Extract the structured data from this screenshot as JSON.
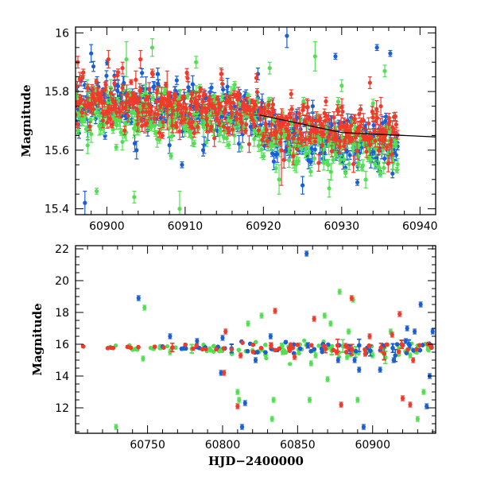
{
  "colors": {
    "blue": "#1a5fd6",
    "green": "#52e052",
    "red": "#f03a2a",
    "black": "#000000"
  },
  "chart_data": [
    {
      "type": "scatter",
      "panel": "top",
      "xlabel": "",
      "ylabel": "Magnitude",
      "xlim": [
        60896,
        60942
      ],
      "ylim": [
        16.02,
        15.38
      ],
      "y_inverted": true,
      "xticks": [
        60900,
        60910,
        60920,
        60930,
        60940
      ],
      "yticks": [
        15.4,
        15.6,
        15.8,
        16
      ],
      "ytick_labels": [
        "15.4",
        "15.6",
        "15.8",
        "16"
      ],
      "trend_line": {
        "points": [
          [
            60919.5,
            15.72
          ],
          [
            60930,
            15.66
          ],
          [
            60942,
            15.645
          ]
        ],
        "color": "black"
      },
      "series": [
        {
          "color": "blue",
          "trend": [
            [
              60896,
              15.78
            ],
            [
              60919,
              15.73
            ],
            [
              60920.5,
              15.66
            ],
            [
              60937,
              15.62
            ]
          ],
          "scatter": 0.045,
          "dense": true,
          "outliers": [
            [
              60897.2,
              15.42,
              0.04
            ],
            [
              60898.0,
              15.93,
              0.03
            ],
            [
              60903.8,
              15.6,
              0.03
            ],
            [
              60905.0,
              15.81,
              0.04
            ],
            [
              60906.5,
              15.86,
              0.02
            ],
            [
              60909.6,
              15.55,
              0.01
            ],
            [
              60912.3,
              15.6,
              0.02
            ],
            [
              60917.0,
              15.74,
              0.02
            ],
            [
              60919.3,
              15.86,
              0.02
            ],
            [
              60923.0,
              15.99,
              0.04
            ],
            [
              60925.0,
              15.48,
              0.03
            ],
            [
              60926.3,
              15.75,
              0.02
            ],
            [
              60927.5,
              15.66,
              0.03
            ],
            [
              60929.2,
              15.92,
              0.01
            ],
            [
              60932.0,
              15.49,
              0.01
            ],
            [
              60934.5,
              15.95,
              0.01
            ],
            [
              60936.2,
              15.93,
              0.01
            ]
          ]
        },
        {
          "color": "green",
          "trend": [
            [
              60896,
              15.74
            ],
            [
              60919,
              15.72
            ],
            [
              60920.5,
              15.66
            ],
            [
              60937,
              15.62
            ]
          ],
          "scatter": 0.05,
          "dense": true,
          "outliers": [
            [
              60897.5,
              15.82,
              0.02
            ],
            [
              60898.7,
              15.46,
              0.01
            ],
            [
              60901.2,
              15.61,
              0.01
            ],
            [
              60902.5,
              15.91,
              0.06
            ],
            [
              60903.5,
              15.44,
              0.02
            ],
            [
              60905.8,
              15.95,
              0.03
            ],
            [
              60908.2,
              15.58,
              0.01
            ],
            [
              60909.3,
              15.4,
              0.06
            ],
            [
              60911.4,
              15.9,
              0.02
            ],
            [
              60913.6,
              15.67,
              0.02
            ],
            [
              60916.3,
              15.65,
              0.03
            ],
            [
              60918.2,
              15.75,
              0.04
            ],
            [
              60920.8,
              15.88,
              0.02
            ],
            [
              60922.0,
              15.5,
              0.05
            ],
            [
              60924.0,
              15.56,
              0.03
            ],
            [
              60926.6,
              15.92,
              0.05
            ],
            [
              60928.4,
              15.47,
              0.03
            ],
            [
              60930.0,
              15.82,
              0.02
            ],
            [
              60932.5,
              15.66,
              0.02
            ],
            [
              60935.5,
              15.87,
              0.02
            ]
          ]
        },
        {
          "color": "red",
          "trend": [
            [
              60896,
              15.78
            ],
            [
              60919,
              15.74
            ],
            [
              60920.5,
              15.7
            ],
            [
              60937,
              15.66
            ]
          ],
          "scatter": 0.04,
          "dense": true,
          "outliers": [
            [
              60896.3,
              15.9,
              0.02
            ],
            [
              60900.2,
              15.91,
              0.03
            ],
            [
              60902.0,
              15.88,
              0.02
            ],
            [
              60903.7,
              15.84,
              0.03
            ],
            [
              60904.3,
              15.91,
              0.03
            ],
            [
              60907.1,
              15.65,
              0.01
            ],
            [
              60907.7,
              15.77,
              0.1
            ],
            [
              60910.8,
              15.68,
              0.01
            ],
            [
              60914.6,
              15.86,
              0.02
            ],
            [
              60920.1,
              15.74,
              0.01
            ],
            [
              60922.3,
              15.6,
              0.12
            ],
            [
              60923.8,
              15.58,
              0.03
            ],
            [
              60925.3,
              15.7,
              0.02
            ],
            [
              60929.7,
              15.61,
              0.02
            ],
            [
              60933.6,
              15.83,
              0.02
            ],
            [
              60935.0,
              15.75,
              0.03
            ],
            [
              60936.0,
              15.69,
              0.02
            ]
          ]
        }
      ]
    },
    {
      "type": "scatter",
      "panel": "bottom",
      "xlabel": "HJD−2400000",
      "ylabel": "Magnitude",
      "xlim": [
        60702,
        60942
      ],
      "ylim": [
        22.2,
        10.4
      ],
      "y_inverted": true,
      "xticks": [
        60750,
        60800,
        60850,
        60900
      ],
      "yticks": [
        12,
        14,
        16,
        18,
        20,
        22
      ],
      "ytick_labels": [
        "12",
        "14",
        "16",
        "18",
        "20",
        "22"
      ],
      "series": [
        {
          "color": "green",
          "baseline": 15.75,
          "x_range": [
            60725,
            60938
          ],
          "scatter": 0.25,
          "outliers": [
            [
              60729,
              10.8
            ],
            [
              60747,
              15.1
            ],
            [
              60748,
              18.3
            ],
            [
              60765,
              15.5
            ],
            [
              60806,
              15.5
            ],
            [
              60810,
              13.0
            ],
            [
              60811,
              12.5
            ],
            [
              60817,
              17.3
            ],
            [
              60826,
              17.8
            ],
            [
              60833,
              11.3
            ],
            [
              60834,
              12.5
            ],
            [
              60840,
              15.5
            ],
            [
              60858,
              12.5
            ],
            [
              60859,
              14.8
            ],
            [
              60862,
              15.3
            ],
            [
              60868,
              17.8
            ],
            [
              60870,
              13.8
            ],
            [
              60872,
              17.3
            ],
            [
              60878,
              19.3
            ],
            [
              60883,
              15.2
            ],
            [
              60884,
              16.8
            ],
            [
              60887,
              18.8
            ],
            [
              60890,
              12.5
            ],
            [
              60900,
              15.3
            ],
            [
              60912,
              16.8
            ],
            [
              60925,
              15.3
            ],
            [
              60930,
              11.3
            ],
            [
              60934,
              13.0
            ]
          ]
        },
        {
          "color": "blue",
          "baseline": 15.8,
          "x_range": [
            60760,
            60940
          ],
          "scatter": 0.22,
          "outliers": [
            [
              60744,
              18.9
            ],
            [
              60765,
              16.5
            ],
            [
              60783,
              16.2
            ],
            [
              60799,
              14.2
            ],
            [
              60800,
              16.4
            ],
            [
              60813,
              10.8
            ],
            [
              60815,
              12.3
            ],
            [
              60822,
              15.0
            ],
            [
              60832,
              16.5
            ],
            [
              60856,
              21.7
            ],
            [
              60877,
              15.0
            ],
            [
              60888,
              15.0
            ],
            [
              60891,
              14.4
            ],
            [
              60894,
              10.8
            ],
            [
              60905,
              14.4
            ],
            [
              60914,
              15.0
            ],
            [
              60922,
              16.2
            ],
            [
              60923,
              17.0
            ],
            [
              60928,
              16.8
            ],
            [
              60932,
              18.5
            ],
            [
              60936,
              12.1
            ],
            [
              60938,
              14.0
            ],
            [
              60940,
              16.8
            ]
          ]
        },
        {
          "color": "red",
          "baseline": 15.82,
          "x_range": [
            60707,
            60940
          ],
          "scatter": 0.18,
          "outliers": [
            [
              60801,
              14.2
            ],
            [
              60802,
              16.8
            ],
            [
              60810,
              12.1
            ],
            [
              60812,
              15.3
            ],
            [
              60835,
              18.1
            ],
            [
              60848,
              15.2
            ],
            [
              60861,
              17.6
            ],
            [
              60876,
              15.5
            ],
            [
              60879,
              12.2
            ],
            [
              60882,
              15.9
            ],
            [
              60886,
              18.9
            ],
            [
              60895,
              15.4
            ],
            [
              60898,
              16.5
            ],
            [
              60913,
              16.6
            ],
            [
              60918,
              17.9
            ],
            [
              60920,
              12.6
            ],
            [
              60925,
              12.2
            ],
            [
              60927,
              15.0
            ]
          ]
        }
      ]
    }
  ]
}
